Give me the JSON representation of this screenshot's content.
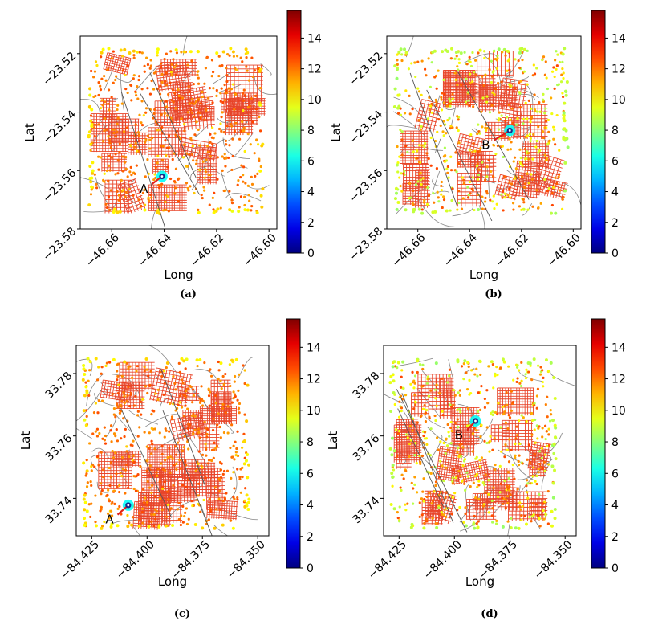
{
  "colorbar": {
    "min": 0,
    "max": 15.8,
    "ticks": [
      0,
      2,
      4,
      6,
      8,
      10,
      12,
      14
    ],
    "colormap": "jet"
  },
  "colors": {
    "line": "#e8452a",
    "node": "#f0a030",
    "edge": "#555555"
  },
  "chart_data": [
    {
      "type": "scatter",
      "caption": "(a)",
      "xlabel": "Long",
      "ylabel": "Lat",
      "xlim": [
        -46.672,
        -46.597
      ],
      "ylim": [
        -23.58,
        -23.514
      ],
      "xticks": [
        -46.66,
        -46.64,
        -46.62,
        -46.6
      ],
      "xtick_labels": [
        "−46.66",
        "−46.64",
        "−46.62",
        "−46.60"
      ],
      "yticks": [
        -23.52,
        -23.54,
        -23.56,
        -23.58
      ],
      "ytick_labels": [
        "−23.52",
        "−23.54",
        "−23.56",
        "−23.58"
      ],
      "grid_extent": {
        "x": [
          -46.668,
          -46.603
        ],
        "y": [
          -23.574,
          -23.519
        ]
      },
      "marker": {
        "label": "A",
        "label_at": [
          -46.6465,
          -23.566
        ],
        "point": [
          -46.6408,
          -23.562
        ]
      },
      "pattern": "uniform-orange"
    },
    {
      "type": "scatter",
      "caption": "(b)",
      "xlabel": "Long",
      "ylabel": "Lat",
      "xlim": [
        -46.672,
        -46.597
      ],
      "ylim": [
        -23.58,
        -23.514
      ],
      "xticks": [
        -46.66,
        -46.64,
        -46.62,
        -46.6
      ],
      "xtick_labels": [
        "−46.66",
        "−46.64",
        "−46.62",
        "−46.60"
      ],
      "yticks": [
        -23.52,
        -23.54,
        -23.56,
        -23.58
      ],
      "ytick_labels": [
        "−23.52",
        "−23.54",
        "−23.56",
        "−23.58"
      ],
      "grid_extent": {
        "x": [
          -46.668,
          -46.603
        ],
        "y": [
          -23.574,
          -23.519
        ]
      },
      "marker": {
        "label": "B",
        "label_at": [
          -46.6325,
          -23.551
        ],
        "point": [
          -46.6245,
          -23.5463
        ]
      },
      "pattern": "mixed-green"
    },
    {
      "type": "scatter",
      "caption": "(c)",
      "xlabel": "Long",
      "ylabel": "Lat",
      "xlim": [
        -84.432,
        -84.345
      ],
      "ylim": [
        33.728,
        33.789
      ],
      "xticks": [
        -84.425,
        -84.4,
        -84.375,
        -84.35
      ],
      "xtick_labels": [
        "−84.425",
        "−84.400",
        "−84.375",
        "−84.350"
      ],
      "yticks": [
        33.78,
        33.76,
        33.74
      ],
      "ytick_labels": [
        "33.78",
        "33.76",
        "33.74"
      ],
      "grid_extent": {
        "x": [
          -84.428,
          -84.355
        ],
        "y": [
          33.731,
          33.784
        ]
      },
      "marker": {
        "label": "A",
        "label_at": [
          -84.4155,
          33.7335
        ],
        "point": [
          -84.4085,
          33.7378
        ]
      },
      "pattern": "uniform-orange"
    },
    {
      "type": "scatter",
      "caption": "(d)",
      "xlabel": "Long",
      "ylabel": "Lat",
      "xlim": [
        -84.432,
        -84.345
      ],
      "ylim": [
        33.728,
        33.789
      ],
      "xticks": [
        -84.425,
        -84.4,
        -84.375,
        -84.35
      ],
      "xtick_labels": [
        "−84.425",
        "−84.400",
        "−84.375",
        "−84.350"
      ],
      "yticks": [
        33.78,
        33.76,
        33.74
      ],
      "ytick_labels": [
        "33.78",
        "33.76",
        "33.74"
      ],
      "grid_extent": {
        "x": [
          -84.428,
          -84.355
        ],
        "y": [
          33.731,
          33.784
        ]
      },
      "marker": {
        "label": "B",
        "label_at": [
          -84.3965,
          33.7605
        ],
        "point": [
          -84.3905,
          33.7648
        ]
      },
      "pattern": "mixed-green"
    }
  ]
}
